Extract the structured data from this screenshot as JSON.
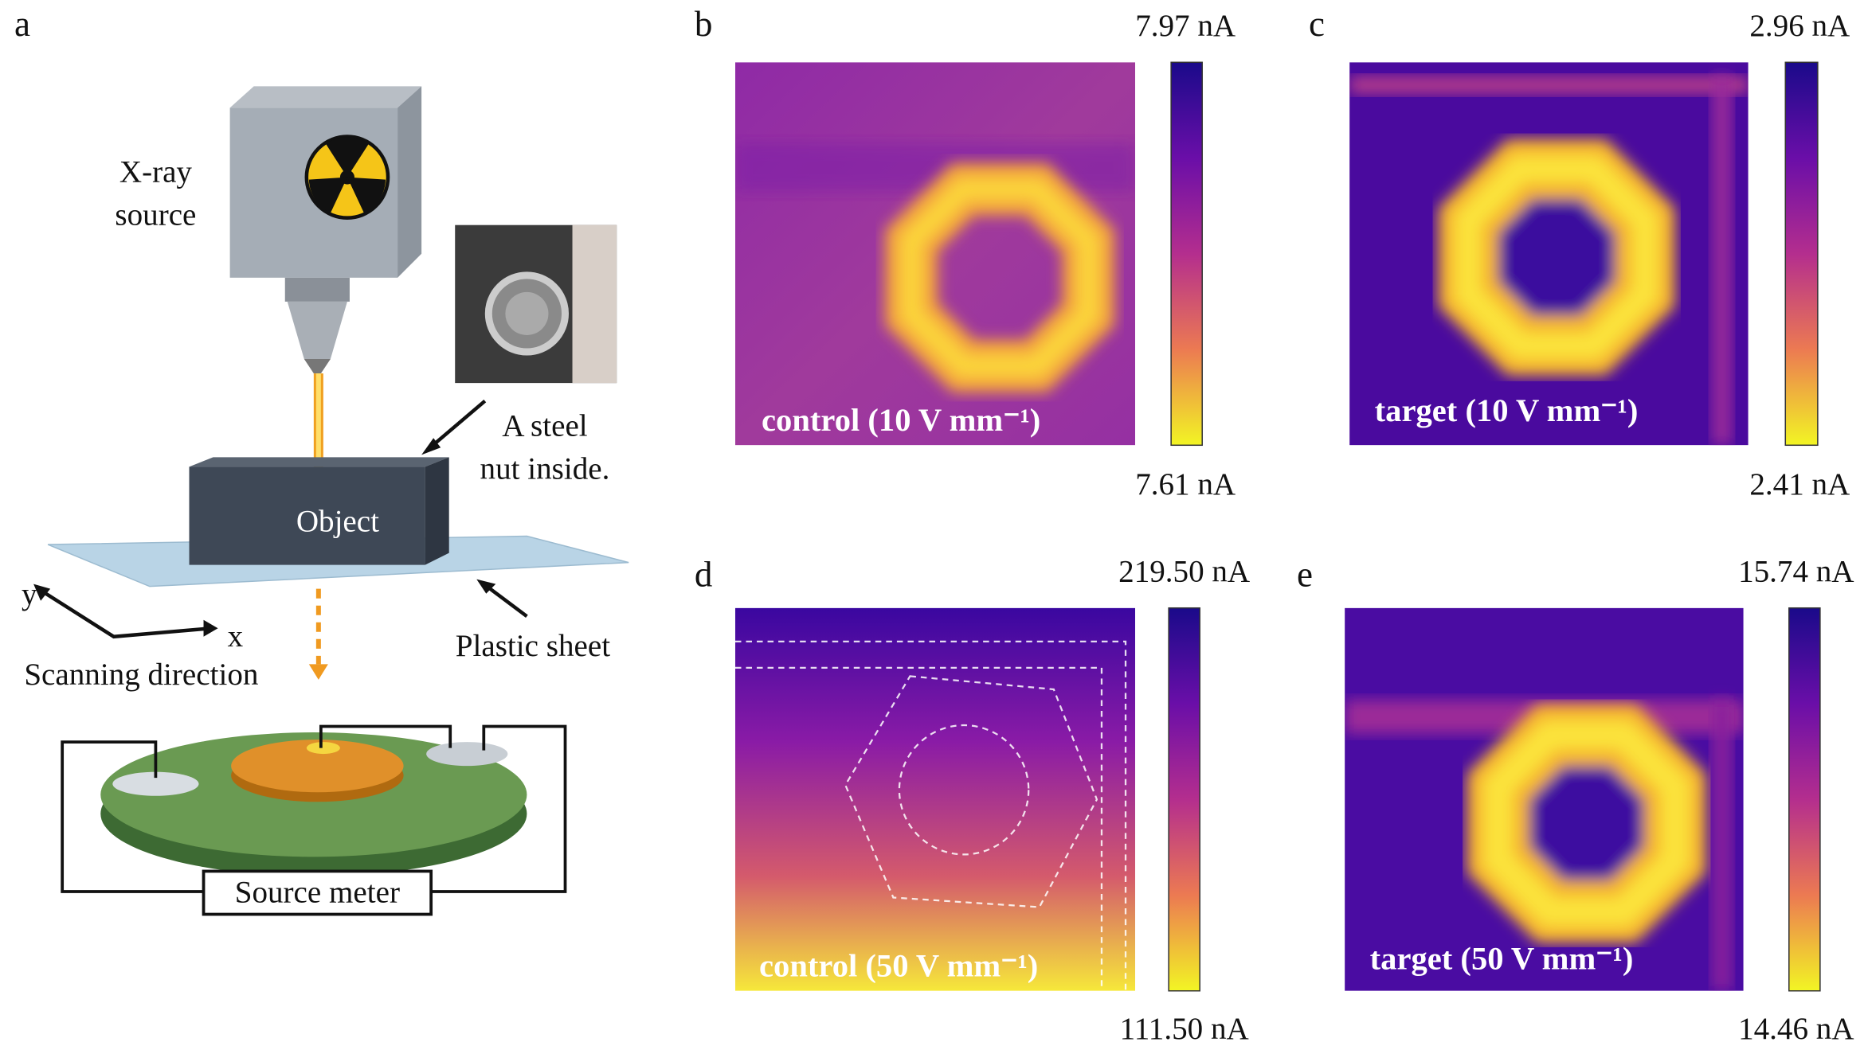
{
  "panel_a": {
    "letter": "a",
    "xray_source": [
      "X-ray",
      "source"
    ],
    "nut_note": [
      "A steel",
      "nut inside."
    ],
    "object": "Object",
    "sheet": "Plastic sheet",
    "axis_y": "y",
    "axis_x": "x",
    "scan": "Scanning direction",
    "meter": "Source meter"
  },
  "maps": [
    {
      "letter": "b",
      "max": "7.97 nA",
      "min": "7.61 nA",
      "caption": "control (10 V mm⁻¹)"
    },
    {
      "letter": "c",
      "max": "2.96 nA",
      "min": "2.41 nA",
      "caption": "target (10 V mm⁻¹)"
    },
    {
      "letter": "d",
      "max": "219.50 nA",
      "min": "111.50 nA",
      "caption": "control (50 V mm⁻¹)"
    },
    {
      "letter": "e",
      "max": "15.74 nA",
      "min": "14.46 nA",
      "caption": "target (50 V mm⁻¹)"
    }
  ]
}
